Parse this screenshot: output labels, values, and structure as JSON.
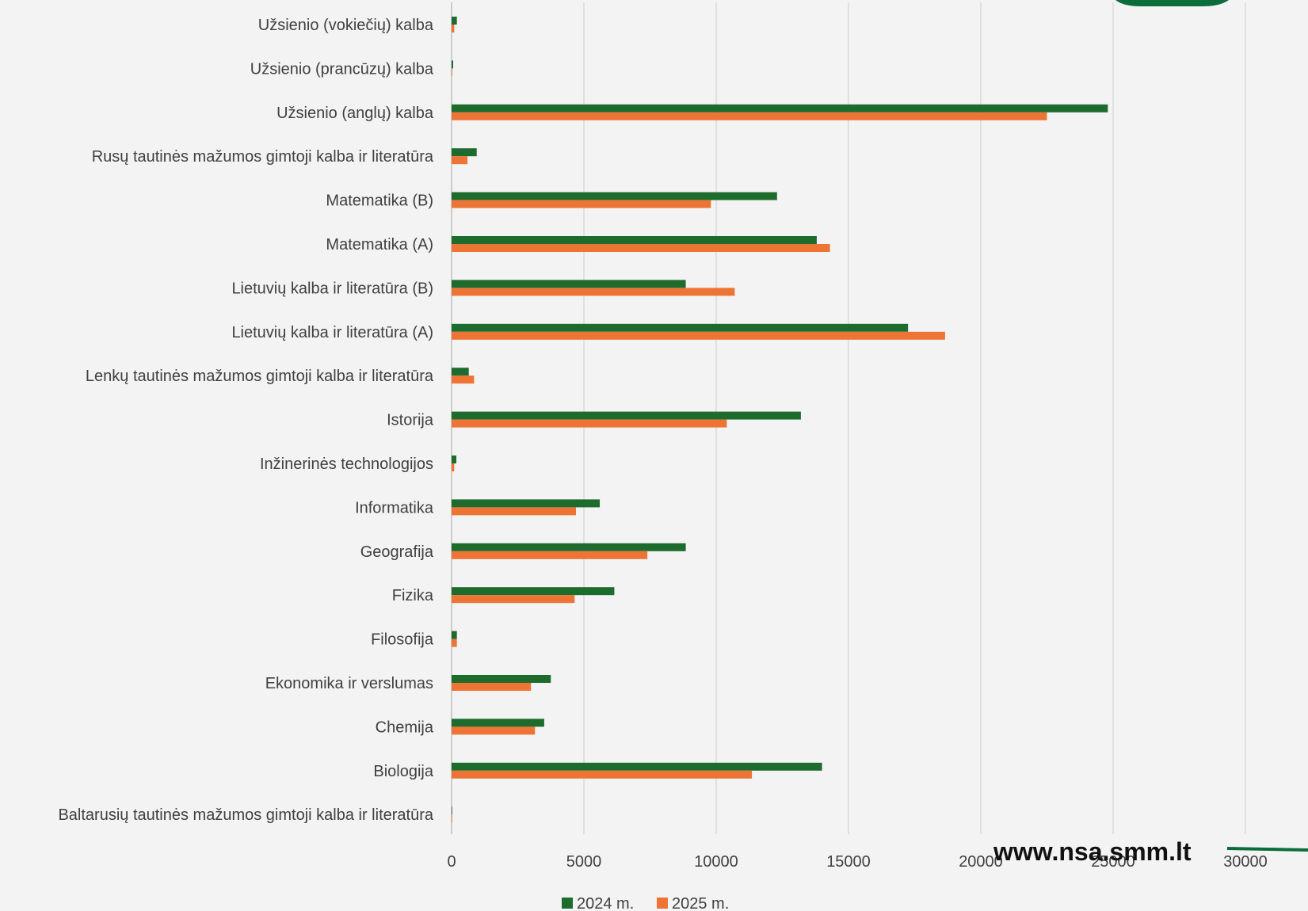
{
  "chart_data": {
    "type": "bar",
    "orientation": "horizontal",
    "categories": [
      "Užsienio (vokiečių) kalba",
      "Užsienio (prancūzų) kalba",
      "Užsienio (anglų) kalba",
      "Rusų tautinės mažumos gimtoji kalba ir literatūra",
      "Matematika (B)",
      "Matematika (A)",
      "Lietuvių kalba ir literatūra (B)",
      "Lietuvių kalba ir literatūra (A)",
      "Lenkų tautinės mažumos gimtoji kalba ir literatūra",
      "Istorija",
      "Inžinerinės technologijos",
      "Informatika",
      "Geografija",
      "Fizika",
      "Filosofija",
      "Ekonomika ir verslumas",
      "Chemija",
      "Biologija",
      "Baltarusių tautinės mažumos gimtoji kalba ir literatūra"
    ],
    "series": [
      {
        "name": "2024 m.",
        "color": "#1e6b2e",
        "values": [
          200,
          60,
          24800,
          950,
          12300,
          13800,
          8850,
          17250,
          650,
          13200,
          180,
          5600,
          8850,
          6150,
          200,
          3750,
          3500,
          14000,
          20
        ]
      },
      {
        "name": "2025 m.",
        "color": "#ed7435",
        "values": [
          100,
          20,
          22500,
          600,
          9800,
          14300,
          10700,
          18650,
          850,
          10400,
          100,
          4700,
          7400,
          4650,
          200,
          3000,
          3150,
          11350,
          10
        ]
      }
    ],
    "xlim": [
      0,
      30000
    ],
    "xticks": [
      "0",
      "5000",
      "10000",
      "15000",
      "20000",
      "25000",
      "30000"
    ],
    "grid": "vertical",
    "legend": "bottom"
  },
  "watermark": {
    "text": "www.nsa.smm.lt"
  },
  "colors": {
    "background": "#f3f3f3",
    "brand_green": "#0b6e3a",
    "grid": "#d9d9d9"
  }
}
